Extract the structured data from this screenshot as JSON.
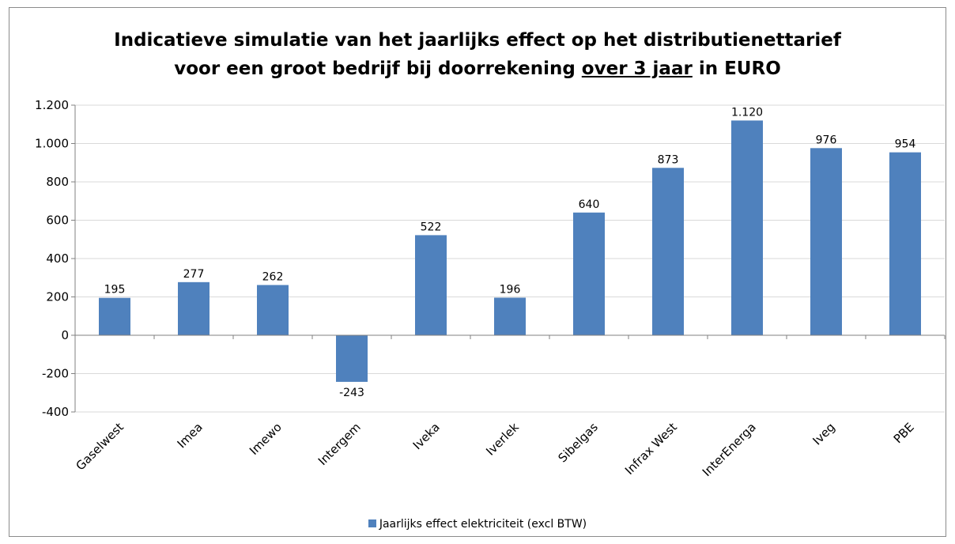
{
  "title": {
    "line1": "Indicatieve simulatie van het jaarlijks effect op het distributienettarief",
    "line2_prefix": "voor een groot bedrijf bij doorrekening ",
    "line2_underlined": "over 3 jaar",
    "line2_suffix": " in EURO"
  },
  "legend": {
    "label": "Jaarlijks effect elektriciteit (excl BTW)"
  },
  "colors": {
    "bar": "#4f81bd",
    "grid": "#d9d9d9",
    "axis": "#808080"
  },
  "chart_data": {
    "type": "bar",
    "categories": [
      "Gaselwest",
      "Imea",
      "Imewo",
      "Intergem",
      "Iveka",
      "Iverlek",
      "Sibelgas",
      "Infrax West",
      "InterEnerga",
      "Iveg",
      "PBE"
    ],
    "series": [
      {
        "name": "Jaarlijks effect elektriciteit (excl BTW)",
        "values": [
          195,
          277,
          262,
          -243,
          522,
          196,
          640,
          873,
          1120,
          976,
          954
        ],
        "labels": [
          "195",
          "277",
          "262",
          "-243",
          "522",
          "196",
          "640",
          "873",
          "1.120",
          "976",
          "954"
        ]
      }
    ],
    "ylim": [
      -400,
      1200
    ],
    "yticks": [
      1200,
      1000,
      800,
      600,
      400,
      200,
      0,
      -200,
      -400
    ],
    "ytick_labels": [
      "1.200",
      "1.000",
      "800",
      "600",
      "400",
      "200",
      "0",
      "-200",
      "-400"
    ],
    "grid": true,
    "legend_position": "bottom"
  }
}
